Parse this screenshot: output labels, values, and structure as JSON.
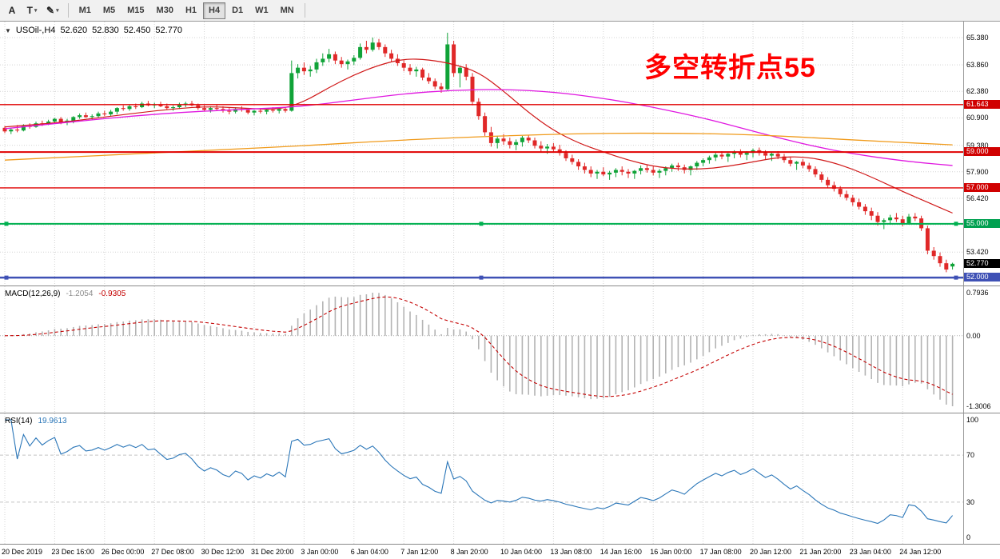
{
  "toolbar": {
    "tool_a_label": "A",
    "text_tool_label": "T",
    "pencil_icon": "✎",
    "dropdown_icon": "▾",
    "timeframes": [
      "M1",
      "M5",
      "M15",
      "M30",
      "H1",
      "H4",
      "D1",
      "W1",
      "MN"
    ],
    "active_timeframe": "H4"
  },
  "quote": {
    "expand_icon": "▼",
    "symbol": "USOil-,H4",
    "open": "52.620",
    "high": "52.830",
    "low": "52.450",
    "close": "52.770"
  },
  "annotation": {
    "text": "多空转折点55",
    "color": "#ff0000"
  },
  "colors": {
    "bull": "#10a338",
    "bear": "#e02828",
    "grid": "#d4d4d4",
    "macd_hist": "#b4b4b4",
    "macd_signal": "#c40000",
    "rsi_line": "#2a76b8",
    "level_dash": "#c4c4c4"
  },
  "main_panel": {
    "scale": {
      "top_price": 66.27,
      "bottom_price": 51.56
    },
    "grid_prices": [
      65.38,
      63.86,
      62.38,
      60.9,
      59.38,
      57.9,
      56.42,
      54.94,
      53.42
    ],
    "axis_labels": [
      "65.380",
      "63.860",
      "62.380",
      "60.900",
      "59.380",
      "57.900",
      "56.420",
      "53.420"
    ],
    "hlines": [
      {
        "price": 61.643,
        "label": "61.643",
        "color": "#e00000",
        "width": 1.4,
        "badge_bg": "#d00000",
        "handles": false
      },
      {
        "price": 59.0,
        "label": "59.000",
        "color": "#e00000",
        "width": 2.0,
        "badge_bg": "#d00000",
        "handles": false
      },
      {
        "price": 57.0,
        "label": "57.000",
        "color": "#e00000",
        "width": 1.4,
        "badge_bg": "#d00000",
        "handles": false
      },
      {
        "price": 55.0,
        "label": "55.000",
        "color": "#00b050",
        "width": 2.0,
        "badge_bg": "#00a050",
        "handles": true
      },
      {
        "price": 52.0,
        "label": "52.000",
        "color": "#3f51b5",
        "width": 2.4,
        "badge_bg": "#3f51b5",
        "handles": true
      }
    ],
    "current_price": {
      "value": 52.77,
      "label": "52.770",
      "badge_bg": "#000000"
    }
  },
  "indicators": {
    "macd": {
      "name": "MACD(12,26,9)",
      "value_main": "-1.2054",
      "value_signal": "-0.9305",
      "fast": 12,
      "slow": 26,
      "signal": 9,
      "axis_max": "0.7936",
      "axis_zero": "0.00",
      "axis_min": "-1.3006"
    },
    "rsi": {
      "name": "RSI(14)",
      "value": "19.9613",
      "period": 14,
      "axis": [
        "100",
        "70",
        "30",
        "0"
      ],
      "levels": [
        70,
        30
      ]
    }
  },
  "time_axis": {
    "labels": [
      "20 Dec 2019",
      "23 Dec 16:00",
      "26 Dec 00:00",
      "27 Dec 08:00",
      "30 Dec 12:00",
      "31 Dec 20:00",
      "3 Jan 00:00",
      "6 Jan 04:00",
      "7 Jan 12:00",
      "8 Jan 20:00",
      "10 Jan 04:00",
      "13 Jan 08:00",
      "14 Jan 16:00",
      "16 Jan 00:00",
      "17 Jan 08:00",
      "20 Jan 12:00",
      "21 Jan 20:00",
      "23 Jan 04:00",
      "24 Jan 12:00"
    ]
  },
  "chart_data": {
    "type": "candlestick",
    "symbol": "USOil",
    "timeframe": "H4",
    "price_range": [
      51.56,
      66.27
    ],
    "candles": [
      [
        60.35,
        60.45,
        60.05,
        60.15
      ],
      [
        60.15,
        60.35,
        60.0,
        60.25
      ],
      [
        60.25,
        60.5,
        60.1,
        60.2
      ],
      [
        60.2,
        60.55,
        60.15,
        60.45
      ],
      [
        60.45,
        60.6,
        60.3,
        60.4
      ],
      [
        60.4,
        60.7,
        60.35,
        60.6
      ],
      [
        60.6,
        60.75,
        60.45,
        60.55
      ],
      [
        60.55,
        60.8,
        60.5,
        60.7
      ],
      [
        60.7,
        60.9,
        60.6,
        60.85
      ],
      [
        60.85,
        60.95,
        60.55,
        60.65
      ],
      [
        60.65,
        60.85,
        60.5,
        60.75
      ],
      [
        60.75,
        61.0,
        60.6,
        60.95
      ],
      [
        60.95,
        61.15,
        60.85,
        61.05
      ],
      [
        61.05,
        61.2,
        60.9,
        60.95
      ],
      [
        60.95,
        61.1,
        60.8,
        61.0
      ],
      [
        61.0,
        61.25,
        60.9,
        61.15
      ],
      [
        61.15,
        61.3,
        61.0,
        61.1
      ],
      [
        61.1,
        61.35,
        61.0,
        61.25
      ],
      [
        61.25,
        61.5,
        61.1,
        61.45
      ],
      [
        61.45,
        61.6,
        61.3,
        61.4
      ],
      [
        61.4,
        61.65,
        61.3,
        61.55
      ],
      [
        61.55,
        61.7,
        61.4,
        61.5
      ],
      [
        61.5,
        61.8,
        61.45,
        61.7
      ],
      [
        61.7,
        61.85,
        61.55,
        61.6
      ],
      [
        61.6,
        61.75,
        61.45,
        61.65
      ],
      [
        61.65,
        61.8,
        61.5,
        61.55
      ],
      [
        61.55,
        61.7,
        61.35,
        61.45
      ],
      [
        61.45,
        61.6,
        61.3,
        61.5
      ],
      [
        61.5,
        61.75,
        61.4,
        61.65
      ],
      [
        61.65,
        61.8,
        61.5,
        61.7
      ],
      [
        61.7,
        61.85,
        61.55,
        61.6
      ],
      [
        61.6,
        61.7,
        61.35,
        61.45
      ],
      [
        61.45,
        61.6,
        61.25,
        61.35
      ],
      [
        61.35,
        61.55,
        61.2,
        61.45
      ],
      [
        61.45,
        61.65,
        61.3,
        61.4
      ],
      [
        61.4,
        61.55,
        61.2,
        61.3
      ],
      [
        61.3,
        61.45,
        61.1,
        61.25
      ],
      [
        61.25,
        61.5,
        61.15,
        61.4
      ],
      [
        61.4,
        61.55,
        61.25,
        61.35
      ],
      [
        61.35,
        61.45,
        61.1,
        61.2
      ],
      [
        61.2,
        61.35,
        61.05,
        61.3
      ],
      [
        61.3,
        61.45,
        61.15,
        61.25
      ],
      [
        61.25,
        61.4,
        61.1,
        61.35
      ],
      [
        61.35,
        61.5,
        61.2,
        61.3
      ],
      [
        61.3,
        61.45,
        61.15,
        61.4
      ],
      [
        61.4,
        61.5,
        61.2,
        61.3
      ],
      [
        61.3,
        64.1,
        61.25,
        63.4
      ],
      [
        63.4,
        63.9,
        63.1,
        63.7
      ],
      [
        63.7,
        64.0,
        63.3,
        63.5
      ],
      [
        63.5,
        63.8,
        63.2,
        63.6
      ],
      [
        63.6,
        64.2,
        63.4,
        64.0
      ],
      [
        64.0,
        64.5,
        63.8,
        64.2
      ],
      [
        64.2,
        64.75,
        64.0,
        64.45
      ],
      [
        64.45,
        64.6,
        63.9,
        64.1
      ],
      [
        64.1,
        64.3,
        63.7,
        63.9
      ],
      [
        63.9,
        64.15,
        63.6,
        64.05
      ],
      [
        64.05,
        64.4,
        63.85,
        64.25
      ],
      [
        64.25,
        65.05,
        64.15,
        64.85
      ],
      [
        64.85,
        65.2,
        64.5,
        64.7
      ],
      [
        64.7,
        65.38,
        64.6,
        65.1
      ],
      [
        65.1,
        65.3,
        64.7,
        64.85
      ],
      [
        64.85,
        65.0,
        64.3,
        64.5
      ],
      [
        64.5,
        64.7,
        64.0,
        64.2
      ],
      [
        64.2,
        64.45,
        63.8,
        63.95
      ],
      [
        63.95,
        64.1,
        63.5,
        63.7
      ],
      [
        63.7,
        63.9,
        63.3,
        63.5
      ],
      [
        63.5,
        63.75,
        63.2,
        63.6
      ],
      [
        63.6,
        63.7,
        63.0,
        63.15
      ],
      [
        63.15,
        63.4,
        62.8,
        62.95
      ],
      [
        62.95,
        63.1,
        62.5,
        62.65
      ],
      [
        62.65,
        62.85,
        62.3,
        62.5
      ],
      [
        62.5,
        65.65,
        62.45,
        65.0
      ],
      [
        65.0,
        65.2,
        63.2,
        63.4
      ],
      [
        63.4,
        63.8,
        62.6,
        63.7
      ],
      [
        63.7,
        63.9,
        63.0,
        63.2
      ],
      [
        63.2,
        63.4,
        61.6,
        61.8
      ],
      [
        61.8,
        62.0,
        60.8,
        61.0
      ],
      [
        61.0,
        61.2,
        59.9,
        60.1
      ],
      [
        60.1,
        60.4,
        59.3,
        59.5
      ],
      [
        59.5,
        59.9,
        59.2,
        59.75
      ],
      [
        59.75,
        60.0,
        59.4,
        59.6
      ],
      [
        59.6,
        59.8,
        59.2,
        59.4
      ],
      [
        59.4,
        59.7,
        59.1,
        59.55
      ],
      [
        59.55,
        59.9,
        59.3,
        59.8
      ],
      [
        59.8,
        59.95,
        59.5,
        59.65
      ],
      [
        59.65,
        59.8,
        59.2,
        59.35
      ],
      [
        59.35,
        59.6,
        59.0,
        59.2
      ],
      [
        59.2,
        59.45,
        58.9,
        59.3
      ],
      [
        59.3,
        59.5,
        59.0,
        59.15
      ],
      [
        59.15,
        59.4,
        58.8,
        58.95
      ],
      [
        58.95,
        59.1,
        58.5,
        58.65
      ],
      [
        58.65,
        58.85,
        58.3,
        58.45
      ],
      [
        58.45,
        58.6,
        58.0,
        58.2
      ],
      [
        58.2,
        58.4,
        57.8,
        58.0
      ],
      [
        58.0,
        58.2,
        57.6,
        57.8
      ],
      [
        57.8,
        58.0,
        57.5,
        57.9
      ],
      [
        57.9,
        58.15,
        57.65,
        57.75
      ],
      [
        57.75,
        57.95,
        57.45,
        57.85
      ],
      [
        57.85,
        58.1,
        57.6,
        58.0
      ],
      [
        58.0,
        58.2,
        57.7,
        57.9
      ],
      [
        57.9,
        58.05,
        57.55,
        57.8
      ],
      [
        57.8,
        58.0,
        57.5,
        57.95
      ],
      [
        57.95,
        58.25,
        57.75,
        58.1
      ],
      [
        58.1,
        58.3,
        57.85,
        58.0
      ],
      [
        58.0,
        58.2,
        57.7,
        57.85
      ],
      [
        57.85,
        58.05,
        57.55,
        57.95
      ],
      [
        57.95,
        58.2,
        57.7,
        58.1
      ],
      [
        58.1,
        58.35,
        57.9,
        58.25
      ],
      [
        58.25,
        58.4,
        57.95,
        58.15
      ],
      [
        58.15,
        58.3,
        57.8,
        58.0
      ],
      [
        58.0,
        58.25,
        57.7,
        58.2
      ],
      [
        58.2,
        58.5,
        58.0,
        58.4
      ],
      [
        58.4,
        58.65,
        58.2,
        58.55
      ],
      [
        58.55,
        58.8,
        58.35,
        58.7
      ],
      [
        58.7,
        58.95,
        58.5,
        58.85
      ],
      [
        58.85,
        59.05,
        58.6,
        58.75
      ],
      [
        58.75,
        58.95,
        58.45,
        58.9
      ],
      [
        58.9,
        59.1,
        58.65,
        59.0
      ],
      [
        59.0,
        59.15,
        58.7,
        58.85
      ],
      [
        58.85,
        59.05,
        58.55,
        58.95
      ],
      [
        58.95,
        59.2,
        58.7,
        59.1
      ],
      [
        59.1,
        59.25,
        58.8,
        58.95
      ],
      [
        58.95,
        59.1,
        58.6,
        58.8
      ],
      [
        58.8,
        59.0,
        58.5,
        58.9
      ],
      [
        58.9,
        59.05,
        58.6,
        58.75
      ],
      [
        58.75,
        58.9,
        58.4,
        58.55
      ],
      [
        58.55,
        58.7,
        58.2,
        58.35
      ],
      [
        58.35,
        58.5,
        58.0,
        58.45
      ],
      [
        58.45,
        58.6,
        58.1,
        58.25
      ],
      [
        58.25,
        58.4,
        57.9,
        58.05
      ],
      [
        58.05,
        58.2,
        57.6,
        57.75
      ],
      [
        57.75,
        57.9,
        57.3,
        57.45
      ],
      [
        57.45,
        57.6,
        57.0,
        57.15
      ],
      [
        57.15,
        57.35,
        56.8,
        56.95
      ],
      [
        56.95,
        57.1,
        56.5,
        56.65
      ],
      [
        56.65,
        56.85,
        56.3,
        56.45
      ],
      [
        56.45,
        56.6,
        56.0,
        56.2
      ],
      [
        56.2,
        56.4,
        55.8,
        55.95
      ],
      [
        55.95,
        56.1,
        55.5,
        55.7
      ],
      [
        55.7,
        55.9,
        55.2,
        55.45
      ],
      [
        55.45,
        55.65,
        54.9,
        55.1
      ],
      [
        55.1,
        55.3,
        54.7,
        55.2
      ],
      [
        55.2,
        55.5,
        54.95,
        55.35
      ],
      [
        55.35,
        55.6,
        55.1,
        55.25
      ],
      [
        55.25,
        55.45,
        54.85,
        55.0
      ],
      [
        55.0,
        55.55,
        54.95,
        55.4
      ],
      [
        55.4,
        55.6,
        55.15,
        55.3
      ],
      [
        55.3,
        55.45,
        54.6,
        54.75
      ],
      [
        54.75,
        54.9,
        53.3,
        53.5
      ],
      [
        53.5,
        53.7,
        53.0,
        53.2
      ],
      [
        53.2,
        53.4,
        52.6,
        52.8
      ],
      [
        52.8,
        53.0,
        52.3,
        52.45
      ],
      [
        52.62,
        52.83,
        52.45,
        52.77
      ]
    ],
    "overlays": [
      {
        "name": "ma-fast-line",
        "color": "#d01818",
        "width": 1.2,
        "points": [
          [
            0,
            60.4
          ],
          [
            8,
            60.6
          ],
          [
            16,
            60.95
          ],
          [
            24,
            61.3
          ],
          [
            32,
            61.55
          ],
          [
            38,
            61.45
          ],
          [
            44,
            61.35
          ],
          [
            48,
            61.8
          ],
          [
            52,
            62.6
          ],
          [
            56,
            63.3
          ],
          [
            60,
            63.85
          ],
          [
            64,
            64.2
          ],
          [
            68,
            64.15
          ],
          [
            72,
            63.9
          ],
          [
            76,
            63.45
          ],
          [
            80,
            62.4
          ],
          [
            84,
            61.2
          ],
          [
            88,
            60.2
          ],
          [
            92,
            59.5
          ],
          [
            96,
            59.0
          ],
          [
            100,
            58.55
          ],
          [
            104,
            58.2
          ],
          [
            108,
            58.05
          ],
          [
            112,
            58.05
          ],
          [
            116,
            58.2
          ],
          [
            120,
            58.45
          ],
          [
            124,
            58.7
          ],
          [
            128,
            58.75
          ],
          [
            132,
            58.5
          ],
          [
            136,
            58.05
          ],
          [
            140,
            57.45
          ],
          [
            144,
            56.8
          ],
          [
            148,
            56.2
          ],
          [
            152,
            55.6
          ]
        ]
      },
      {
        "name": "ma-medium-line",
        "color": "#e018e0",
        "width": 1.3,
        "points": [
          [
            0,
            60.3
          ],
          [
            10,
            60.65
          ],
          [
            20,
            61.0
          ],
          [
            30,
            61.25
          ],
          [
            40,
            61.4
          ],
          [
            48,
            61.55
          ],
          [
            56,
            61.9
          ],
          [
            64,
            62.25
          ],
          [
            72,
            62.45
          ],
          [
            80,
            62.5
          ],
          [
            88,
            62.35
          ],
          [
            96,
            62.0
          ],
          [
            104,
            61.5
          ],
          [
            112,
            60.9
          ],
          [
            118,
            60.35
          ],
          [
            124,
            59.8
          ],
          [
            130,
            59.3
          ],
          [
            136,
            58.9
          ],
          [
            142,
            58.6
          ],
          [
            147,
            58.4
          ],
          [
            152,
            58.25
          ]
        ]
      },
      {
        "name": "ma-slow-line",
        "color": "#f09a1a",
        "width": 1.3,
        "points": [
          [
            0,
            58.55
          ],
          [
            12,
            58.75
          ],
          [
            24,
            58.95
          ],
          [
            36,
            59.15
          ],
          [
            48,
            59.35
          ],
          [
            60,
            59.6
          ],
          [
            72,
            59.8
          ],
          [
            84,
            59.95
          ],
          [
            96,
            60.05
          ],
          [
            108,
            60.05
          ],
          [
            116,
            60.0
          ],
          [
            124,
            59.9
          ],
          [
            132,
            59.75
          ],
          [
            140,
            59.6
          ],
          [
            146,
            59.5
          ],
          [
            152,
            59.4
          ]
        ]
      }
    ]
  }
}
